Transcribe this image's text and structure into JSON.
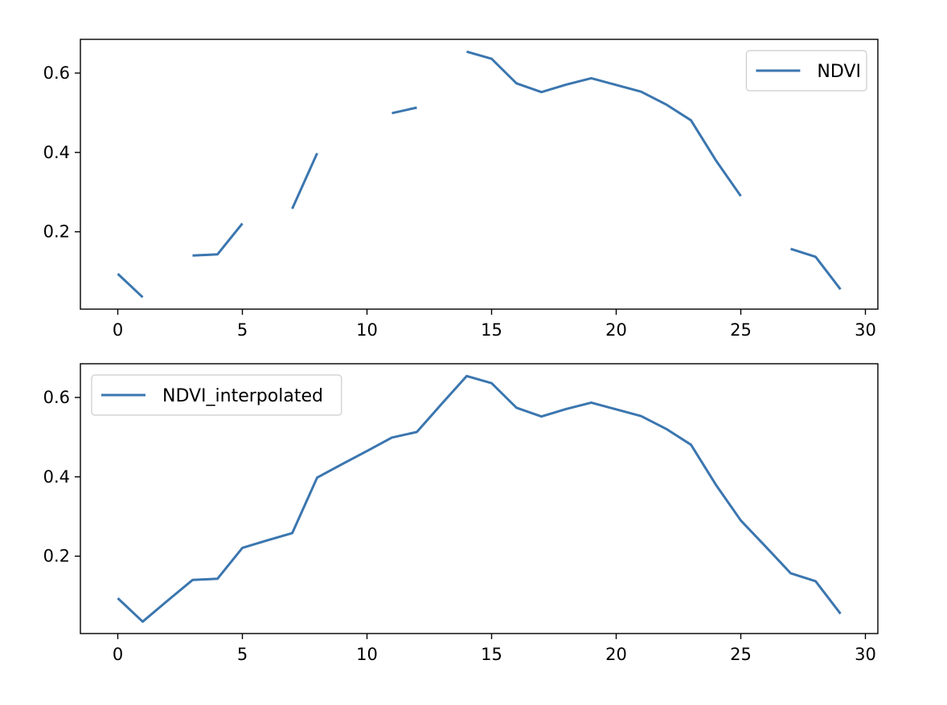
{
  "colors": {
    "series": "#3b76af",
    "frame": "#000000",
    "legend_border": "#cccccc"
  },
  "chart_data": [
    {
      "type": "line",
      "legend_placement": "top-right",
      "grid": false,
      "xlim": [
        -1.5,
        30.5
      ],
      "ylim": [
        0.005,
        0.685
      ],
      "xticks": [
        0,
        5,
        10,
        15,
        20,
        25,
        30
      ],
      "yticks": [
        0.2,
        0.4,
        0.6
      ],
      "series": [
        {
          "name": "NDVI",
          "x": [
            0,
            1,
            2,
            3,
            4,
            5,
            6,
            7,
            8,
            9,
            10,
            11,
            12,
            13,
            14,
            15,
            16,
            17,
            18,
            19,
            20,
            21,
            22,
            23,
            24,
            25,
            26,
            27,
            28,
            29
          ],
          "y": [
            0.094,
            0.035,
            null,
            0.14,
            0.143,
            0.221,
            null,
            0.258,
            0.398,
            null,
            null,
            0.499,
            0.513,
            null,
            0.654,
            0.636,
            0.574,
            0.552,
            0.571,
            0.587,
            0.57,
            0.553,
            0.521,
            0.481,
            0.38,
            0.29,
            null,
            0.157,
            0.137,
            0.055
          ]
        }
      ]
    },
    {
      "type": "line",
      "legend_placement": "top-left",
      "grid": false,
      "xlim": [
        -1.5,
        30.5
      ],
      "ylim": [
        0.005,
        0.685
      ],
      "xticks": [
        0,
        5,
        10,
        15,
        20,
        25,
        30
      ],
      "yticks": [
        0.2,
        0.4,
        0.6
      ],
      "series": [
        {
          "name": "NDVI_interpolated",
          "x": [
            0,
            1,
            2,
            3,
            4,
            5,
            6,
            7,
            8,
            9,
            10,
            11,
            12,
            13,
            14,
            15,
            16,
            17,
            18,
            19,
            20,
            21,
            22,
            23,
            24,
            25,
            26,
            27,
            28,
            29
          ],
          "y": [
            0.094,
            0.035,
            0.088,
            0.14,
            0.143,
            0.221,
            0.24,
            0.258,
            0.398,
            0.432,
            0.465,
            0.499,
            0.513,
            0.584,
            0.654,
            0.636,
            0.574,
            0.552,
            0.571,
            0.587,
            0.57,
            0.553,
            0.521,
            0.481,
            0.38,
            0.29,
            0.224,
            0.157,
            0.137,
            0.055
          ]
        }
      ]
    }
  ]
}
